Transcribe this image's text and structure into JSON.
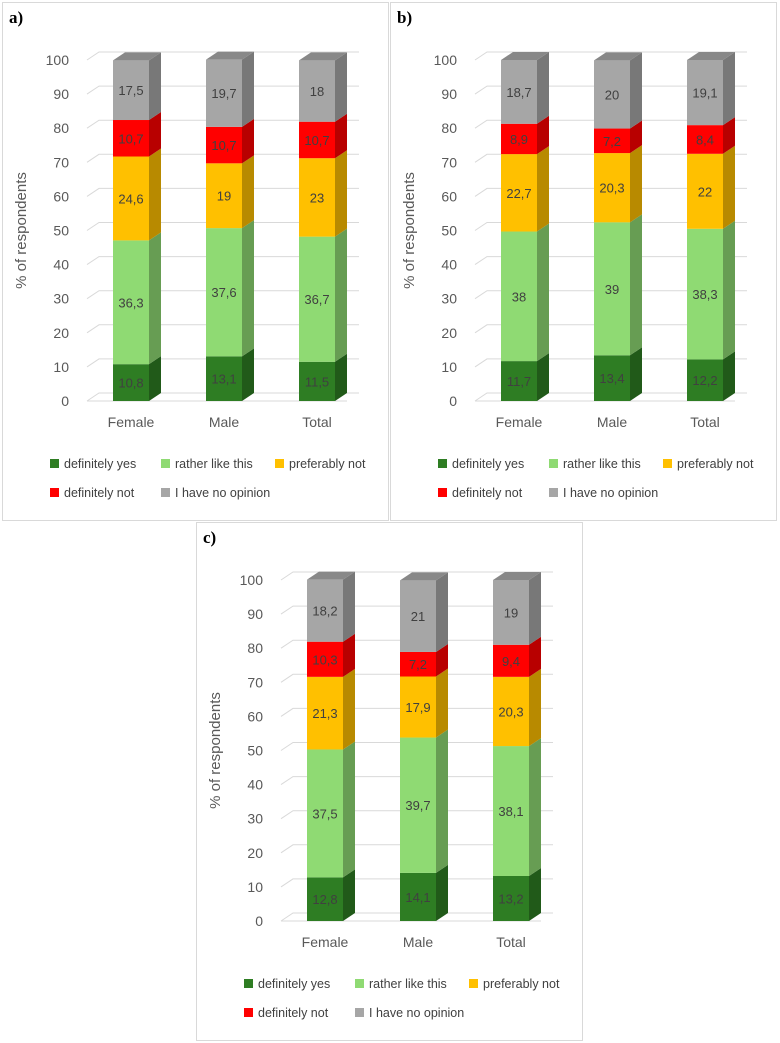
{
  "legend": {
    "labels": [
      "definitely yes",
      "rather like this",
      "preferably not",
      "definitely not",
      "I have no opinion"
    ],
    "colors": [
      "#2e7d23",
      "#8fda73",
      "#ffc000",
      "#ff0000",
      "#a6a6a6"
    ]
  },
  "chart_data": [
    {
      "type": "bar",
      "stacked": true,
      "panel_label": "a)",
      "categories": [
        "Female",
        "Male",
        "Total"
      ],
      "ylabel": "% of respondents",
      "ylim": [
        0,
        100
      ],
      "yticks": [
        0,
        10,
        20,
        30,
        40,
        50,
        60,
        70,
        80,
        90,
        100
      ],
      "grid": true,
      "legend_position": "bottom",
      "series": [
        {
          "name": "definitely yes",
          "values": [
            10.8,
            13.1,
            11.5
          ],
          "labels": [
            "10,8",
            "13,1",
            "11,5"
          ]
        },
        {
          "name": "rather like this",
          "values": [
            36.3,
            37.6,
            36.7
          ],
          "labels": [
            "36,3",
            "37,6",
            "36,7"
          ]
        },
        {
          "name": "preferably not",
          "values": [
            24.6,
            19,
            23
          ],
          "labels": [
            "24,6",
            "19",
            "23"
          ]
        },
        {
          "name": "definitely not",
          "values": [
            10.7,
            10.7,
            10.7
          ],
          "labels": [
            "10,7",
            "10,7",
            "10,7"
          ]
        },
        {
          "name": "I have no opinion",
          "values": [
            17.5,
            19.7,
            18
          ],
          "labels": [
            "17,5",
            "19,7",
            "18"
          ]
        }
      ]
    },
    {
      "type": "bar",
      "stacked": true,
      "panel_label": "b)",
      "categories": [
        "Female",
        "Male",
        "Total"
      ],
      "ylabel": "% of respondents",
      "ylim": [
        0,
        100
      ],
      "yticks": [
        0,
        10,
        20,
        30,
        40,
        50,
        60,
        70,
        80,
        90,
        100
      ],
      "grid": true,
      "legend_position": "bottom",
      "series": [
        {
          "name": "definitely yes",
          "values": [
            11.7,
            13.4,
            12.2
          ],
          "labels": [
            "11,7",
            "13,4",
            "12,2"
          ]
        },
        {
          "name": "rather like this",
          "values": [
            38,
            39,
            38.3
          ],
          "labels": [
            "38",
            "39",
            "38,3"
          ]
        },
        {
          "name": "preferably not",
          "values": [
            22.7,
            20.3,
            22
          ],
          "labels": [
            "22,7",
            "20,3",
            "22"
          ]
        },
        {
          "name": "definitely not",
          "values": [
            8.9,
            7.2,
            8.4
          ],
          "labels": [
            "8,9",
            "7,2",
            "8,4"
          ]
        },
        {
          "name": "I have no opinion",
          "values": [
            18.7,
            20,
            19.1
          ],
          "labels": [
            "18,7",
            "20",
            "19,1"
          ]
        }
      ]
    },
    {
      "type": "bar",
      "stacked": true,
      "panel_label": "c)",
      "categories": [
        "Female",
        "Male",
        "Total"
      ],
      "ylabel": "% of respondents",
      "ylim": [
        0,
        100
      ],
      "yticks": [
        0,
        10,
        20,
        30,
        40,
        50,
        60,
        70,
        80,
        90,
        100
      ],
      "grid": true,
      "legend_position": "bottom",
      "series": [
        {
          "name": "definitely yes",
          "values": [
            12.8,
            14.1,
            13.2
          ],
          "labels": [
            "12,8",
            "14,1",
            "13,2"
          ]
        },
        {
          "name": "rather like this",
          "values": [
            37.5,
            39.7,
            38.1
          ],
          "labels": [
            "37,5",
            "39,7",
            "38,1"
          ]
        },
        {
          "name": "preferably not",
          "values": [
            21.3,
            17.9,
            20.3
          ],
          "labels": [
            "21,3",
            "17,9",
            "20,3"
          ]
        },
        {
          "name": "definitely not",
          "values": [
            10.3,
            7.2,
            9.4
          ],
          "labels": [
            "10,3",
            "7,2",
            "9,4"
          ]
        },
        {
          "name": "I have no opinion",
          "values": [
            18.2,
            21,
            19
          ],
          "labels": [
            "18,2",
            "21",
            "19"
          ]
        }
      ]
    }
  ]
}
